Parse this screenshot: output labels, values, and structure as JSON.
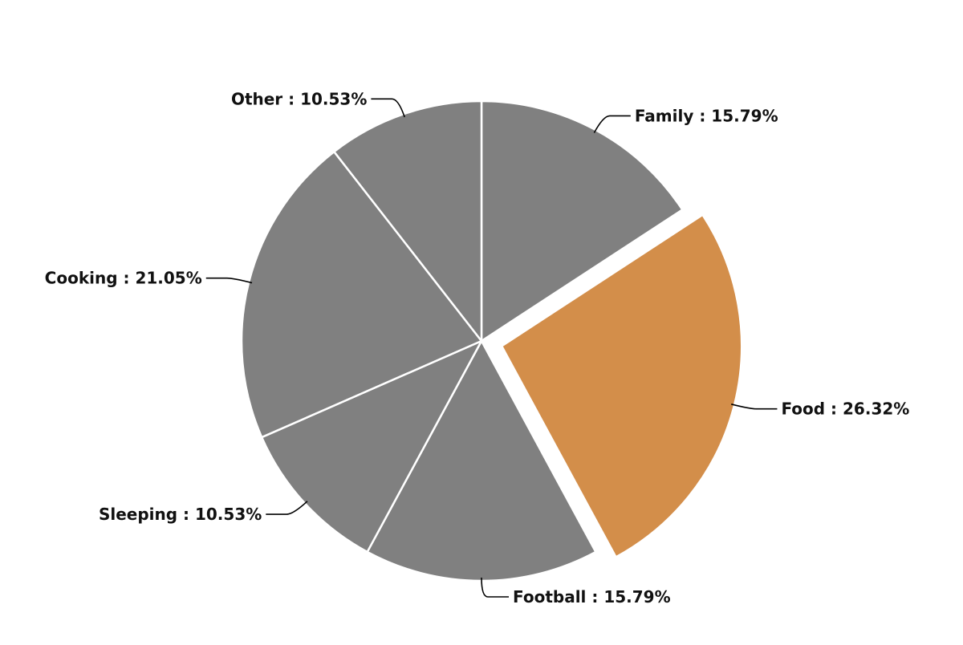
{
  "chart_data": {
    "type": "pie",
    "title": "",
    "slices": [
      {
        "label": "Family",
        "value": 15.79,
        "display": "Family : 15.79%"
      },
      {
        "label": "Food",
        "value": 26.32,
        "display": "Food : 26.32%",
        "exploded": true
      },
      {
        "label": "Football",
        "value": 15.79,
        "display": "Football : 15.79%"
      },
      {
        "label": "Sleeping",
        "value": 10.53,
        "display": "Sleeping : 10.53%"
      },
      {
        "label": "Cooking",
        "value": 21.05,
        "display": "Cooking : 21.05%"
      },
      {
        "label": "Other",
        "value": 10.53,
        "display": "Other : 10.53%"
      }
    ],
    "start_angle": "12 o'clock",
    "direction": "clockwise",
    "legend": "none",
    "colors": {
      "default": "#808080",
      "highlight": "#d38e4a",
      "separator": "#ffffff",
      "leader": "#000000"
    }
  }
}
